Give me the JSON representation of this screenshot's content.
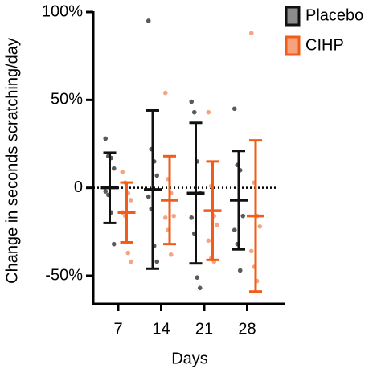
{
  "chart_data": {
    "type": "dot_errorbar",
    "ylabel": "Change in seconds scratching/day",
    "xlabel": "Days",
    "categories": [
      "7",
      "14",
      "21",
      "28"
    ],
    "ylim": [
      -66,
      100
    ],
    "yticks": [
      {
        "value": -50,
        "label": "-50%"
      },
      0,
      {
        "value": 50,
        "label": "50%"
      },
      {
        "value": 100,
        "label": "100%"
      }
    ],
    "legend": "top-right",
    "series": [
      {
        "name": "Placebo",
        "color": "#111111",
        "fill": "#8c8c8c",
        "point_color": "#5a5a5a",
        "values": [
          0,
          -1,
          -3,
          -7
        ],
        "errors": [
          20,
          45,
          40,
          28
        ],
        "points": [
          [
            28,
            18,
            17,
            11,
            -2,
            -4,
            -14,
            -32
          ],
          [
            95,
            22,
            15,
            7,
            -5,
            -12,
            -33,
            -42
          ],
          [
            49,
            43,
            15,
            -3,
            -17,
            -26,
            -51,
            -57
          ],
          [
            45,
            13,
            10,
            -16,
            -24,
            -32,
            -47
          ]
        ]
      },
      {
        "name": "CIHP",
        "color": "#f25c19",
        "fill": "#f6a27c",
        "point_color": "#f4a582",
        "values": [
          -14,
          -7,
          -13,
          -16
        ],
        "errors": [
          17,
          25,
          28,
          43
        ],
        "points": [
          [
            9,
            3,
            -3,
            -7,
            -14,
            -16,
            -37,
            -42
          ],
          [
            54,
            5,
            -3,
            -16,
            -17,
            -24,
            -38
          ],
          [
            43,
            1,
            -16,
            -21,
            -30,
            -40,
            -42
          ],
          [
            88,
            3,
            -16,
            -22,
            -36,
            -45,
            -53
          ]
        ]
      }
    ]
  }
}
